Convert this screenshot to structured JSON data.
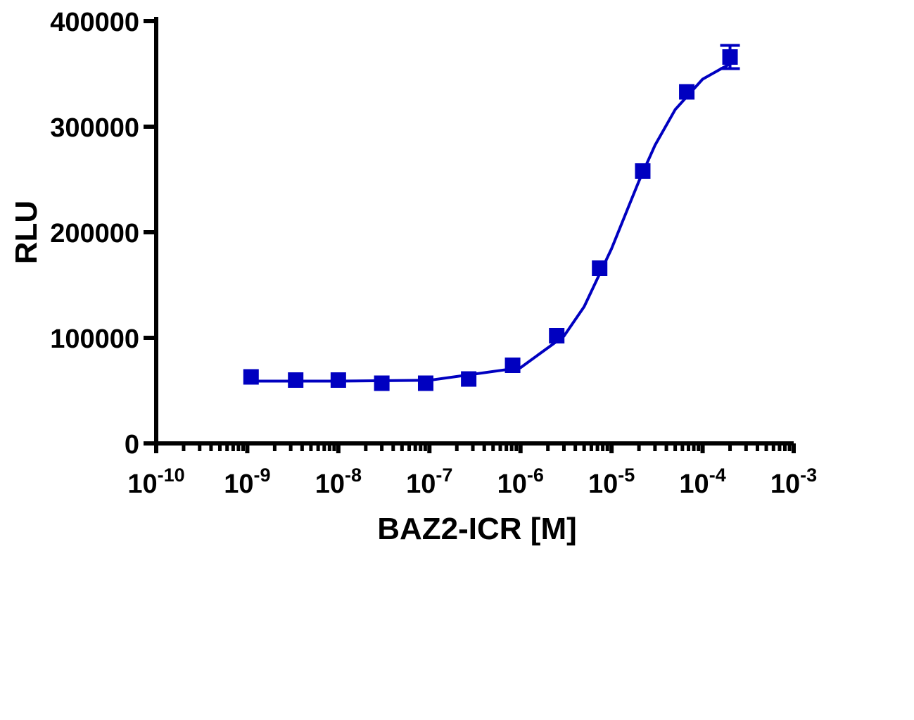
{
  "chart_data": {
    "type": "scatter",
    "x_label": "BAZ2-ICR [M]",
    "y_label": "RLU",
    "xscale": "log",
    "xlim": [
      1e-10,
      0.001
    ],
    "xticks": [
      {
        "value": 1e-10,
        "label": "10",
        "exponent": "-10"
      },
      {
        "value": 1e-09,
        "label": "10",
        "exponent": "-9"
      },
      {
        "value": 1e-08,
        "label": "10",
        "exponent": "-8"
      },
      {
        "value": 1e-07,
        "label": "10",
        "exponent": "-7"
      },
      {
        "value": 1e-06,
        "label": "10",
        "exponent": "-6"
      },
      {
        "value": 1e-05,
        "label": "10",
        "exponent": "-5"
      },
      {
        "value": 0.0001,
        "label": "10",
        "exponent": "-4"
      },
      {
        "value": 0.001,
        "label": "10",
        "exponent": "-3"
      }
    ],
    "ylim": [
      0,
      400000
    ],
    "yticks": [
      0,
      100000,
      200000,
      300000,
      400000
    ],
    "grid": false,
    "series": [
      {
        "color": "#0000c0",
        "x": [
          1.1e-09,
          3.4e-09,
          1e-08,
          3e-08,
          9.1e-08,
          2.7e-07,
          8.2e-07,
          2.5e-06,
          7.4e-06,
          2.2e-05,
          6.7e-05,
          0.0002
        ],
        "values": [
          63000,
          60000,
          60000,
          57000,
          57000,
          61000,
          74000,
          102000,
          166000,
          258000,
          333000,
          366000
        ],
        "errors": [
          null,
          null,
          null,
          null,
          null,
          null,
          null,
          null,
          null,
          null,
          null,
          11000
        ]
      }
    ],
    "fit": {
      "color": "#0000c0",
      "x": [
        1.1e-09,
        1e-08,
        1e-07,
        1e-06,
        3e-06,
        5e-06,
        1e-05,
        1.5e-05,
        2e-05,
        3e-05,
        5e-05,
        0.0001,
        0.0002
      ],
      "values": [
        59000,
        59000,
        59800,
        71700,
        101600,
        129500,
        184400,
        222000,
        248500,
        282400,
        316200,
        345000,
        359600
      ]
    }
  }
}
